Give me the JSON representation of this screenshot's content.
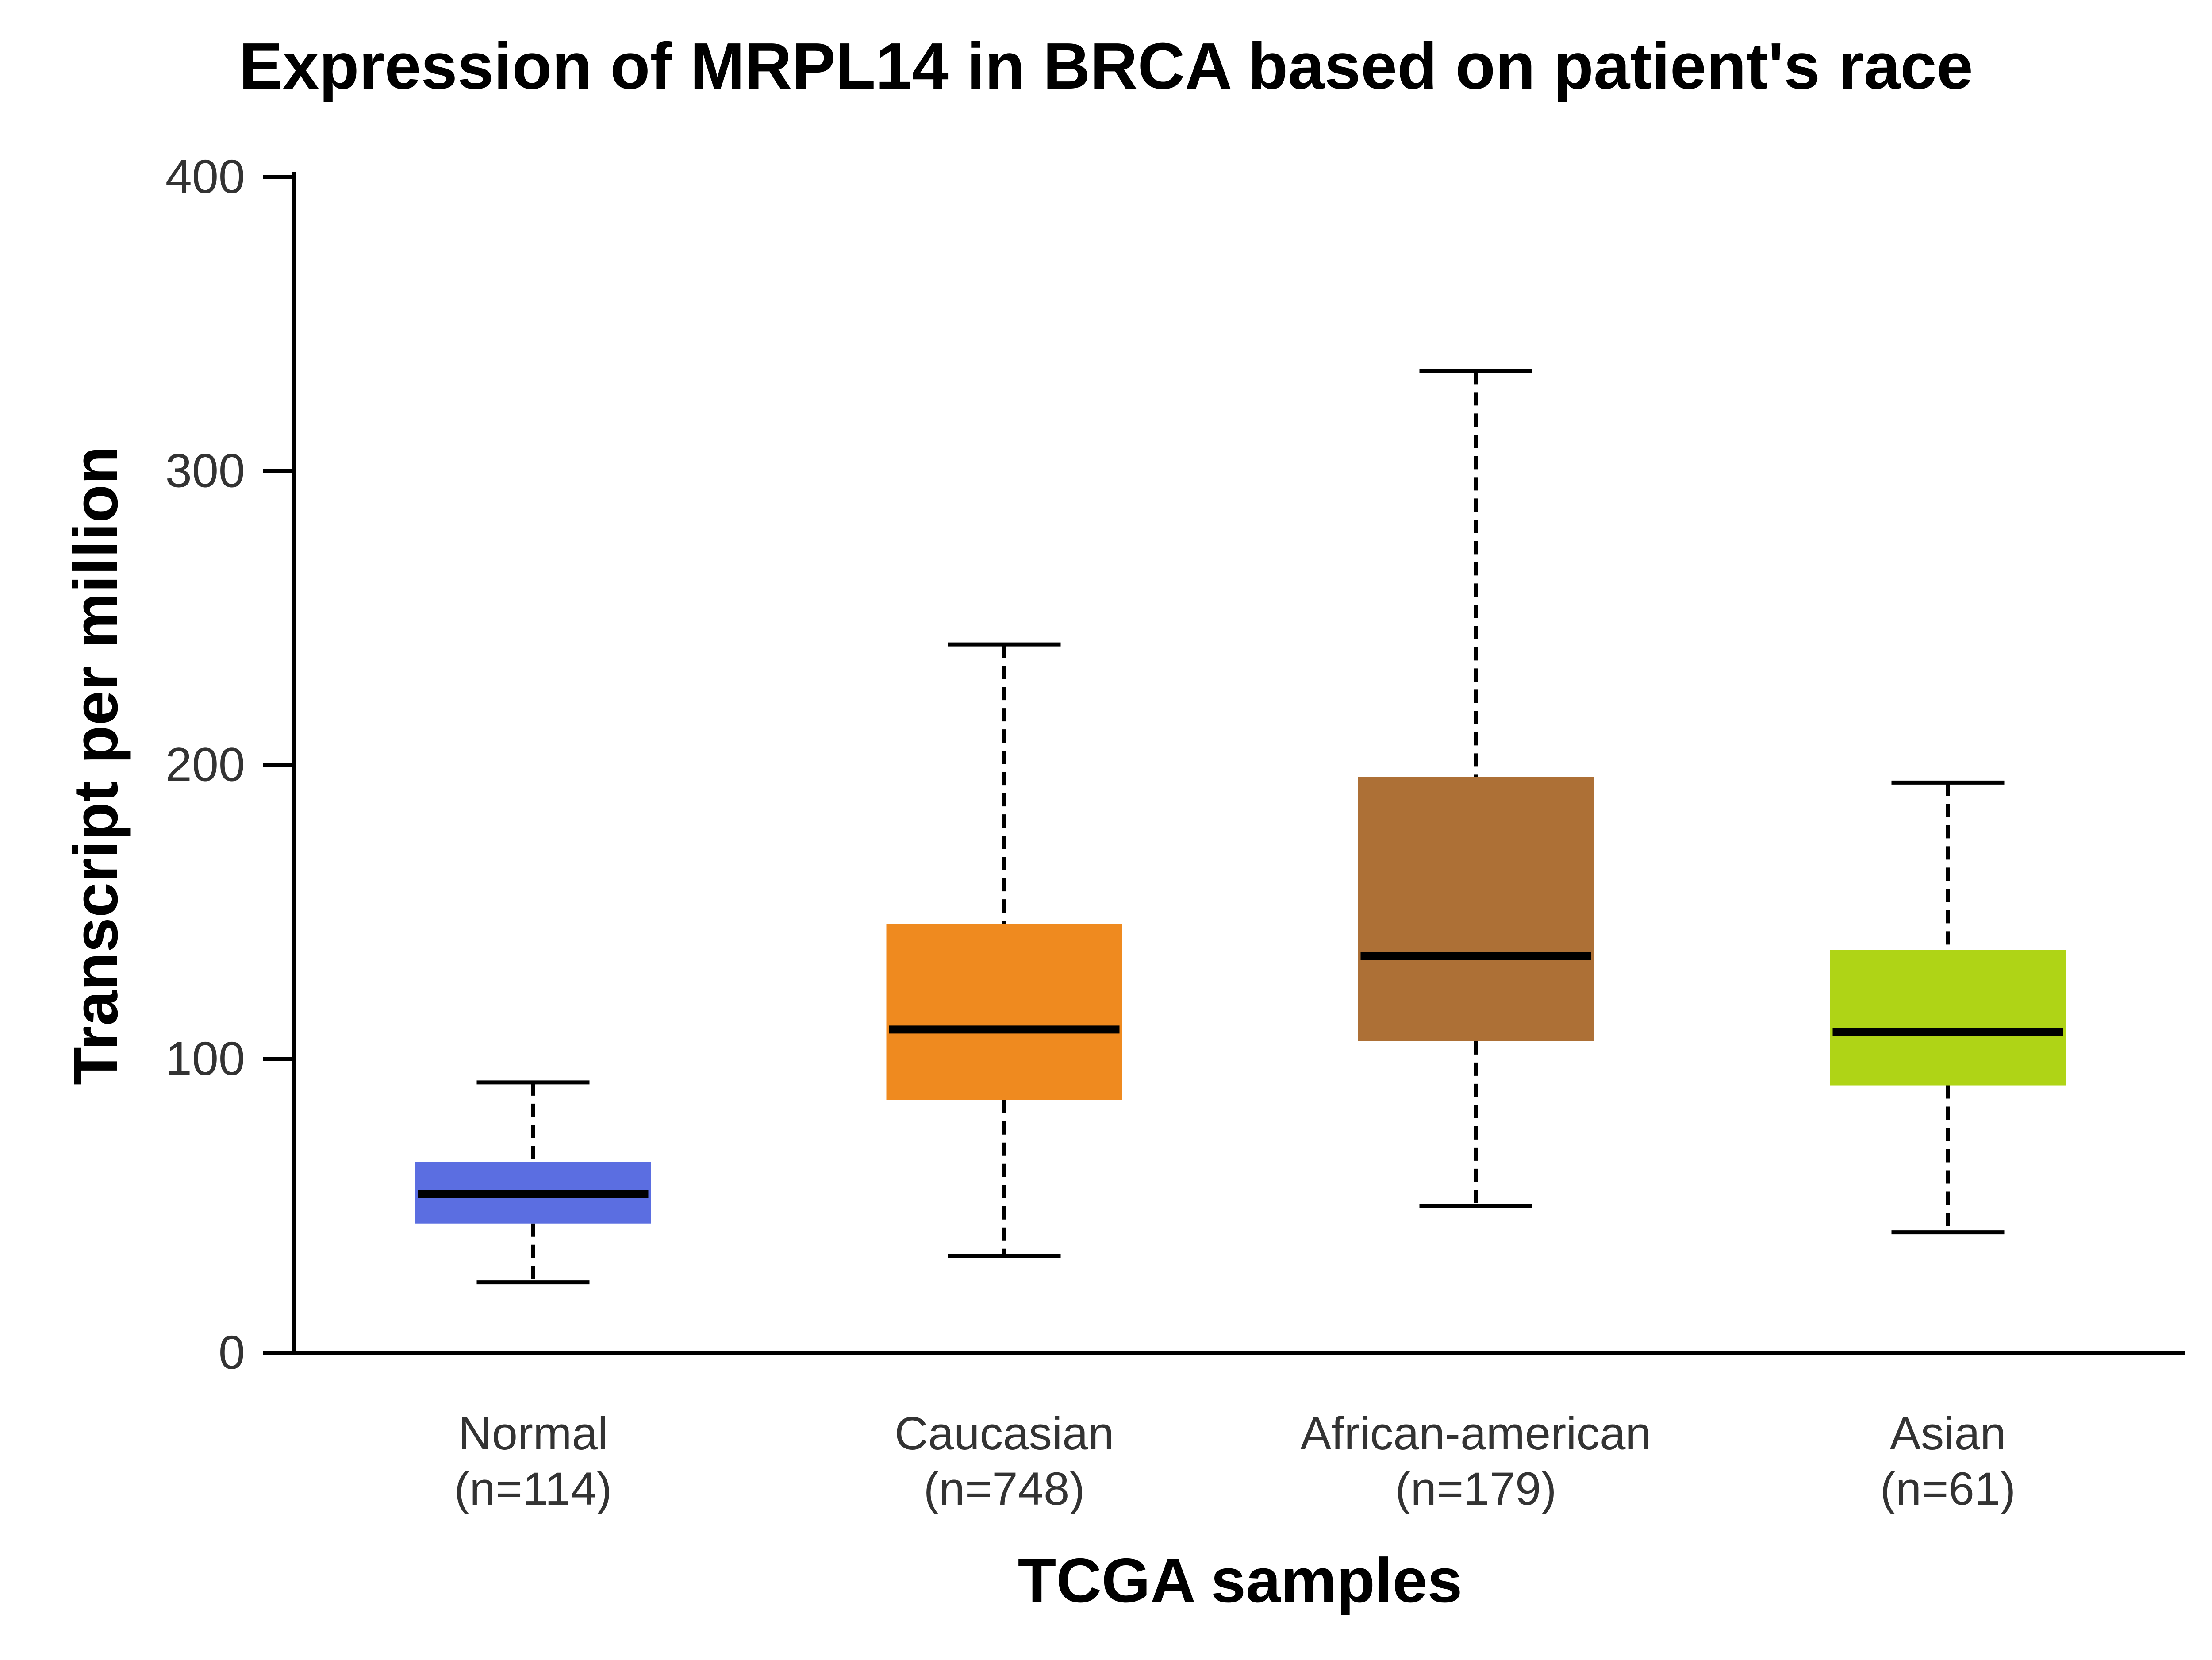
{
  "chart_data": {
    "type": "box",
    "title": "Expression of MRPL14 in BRCA based on patient's race",
    "xlabel": "TCGA samples",
    "ylabel": "Transcript per million",
    "ylim": [
      0,
      400
    ],
    "yticks": [
      "0",
      "100",
      "200",
      "300",
      "400"
    ],
    "grid": false,
    "legend": "none",
    "categories": [
      {
        "name": "Normal",
        "n": "(n=114)",
        "color": "#5b6ee1",
        "min": 24,
        "q1": 44,
        "median": 54,
        "q3": 65,
        "max": 92
      },
      {
        "name": "Caucasian",
        "n": "(n=748)",
        "color": "#ef8a1f",
        "min": 33,
        "q1": 86,
        "median": 110,
        "q3": 146,
        "max": 241
      },
      {
        "name": "African-american",
        "n": "(n=179)",
        "color": "#ad7036",
        "min": 50,
        "q1": 106,
        "median": 135,
        "q3": 196,
        "max": 334
      },
      {
        "name": "Asian",
        "n": "(n=61)",
        "color": "#afd416",
        "min": 41,
        "q1": 91,
        "median": 109,
        "q3": 137,
        "max": 194
      }
    ]
  }
}
